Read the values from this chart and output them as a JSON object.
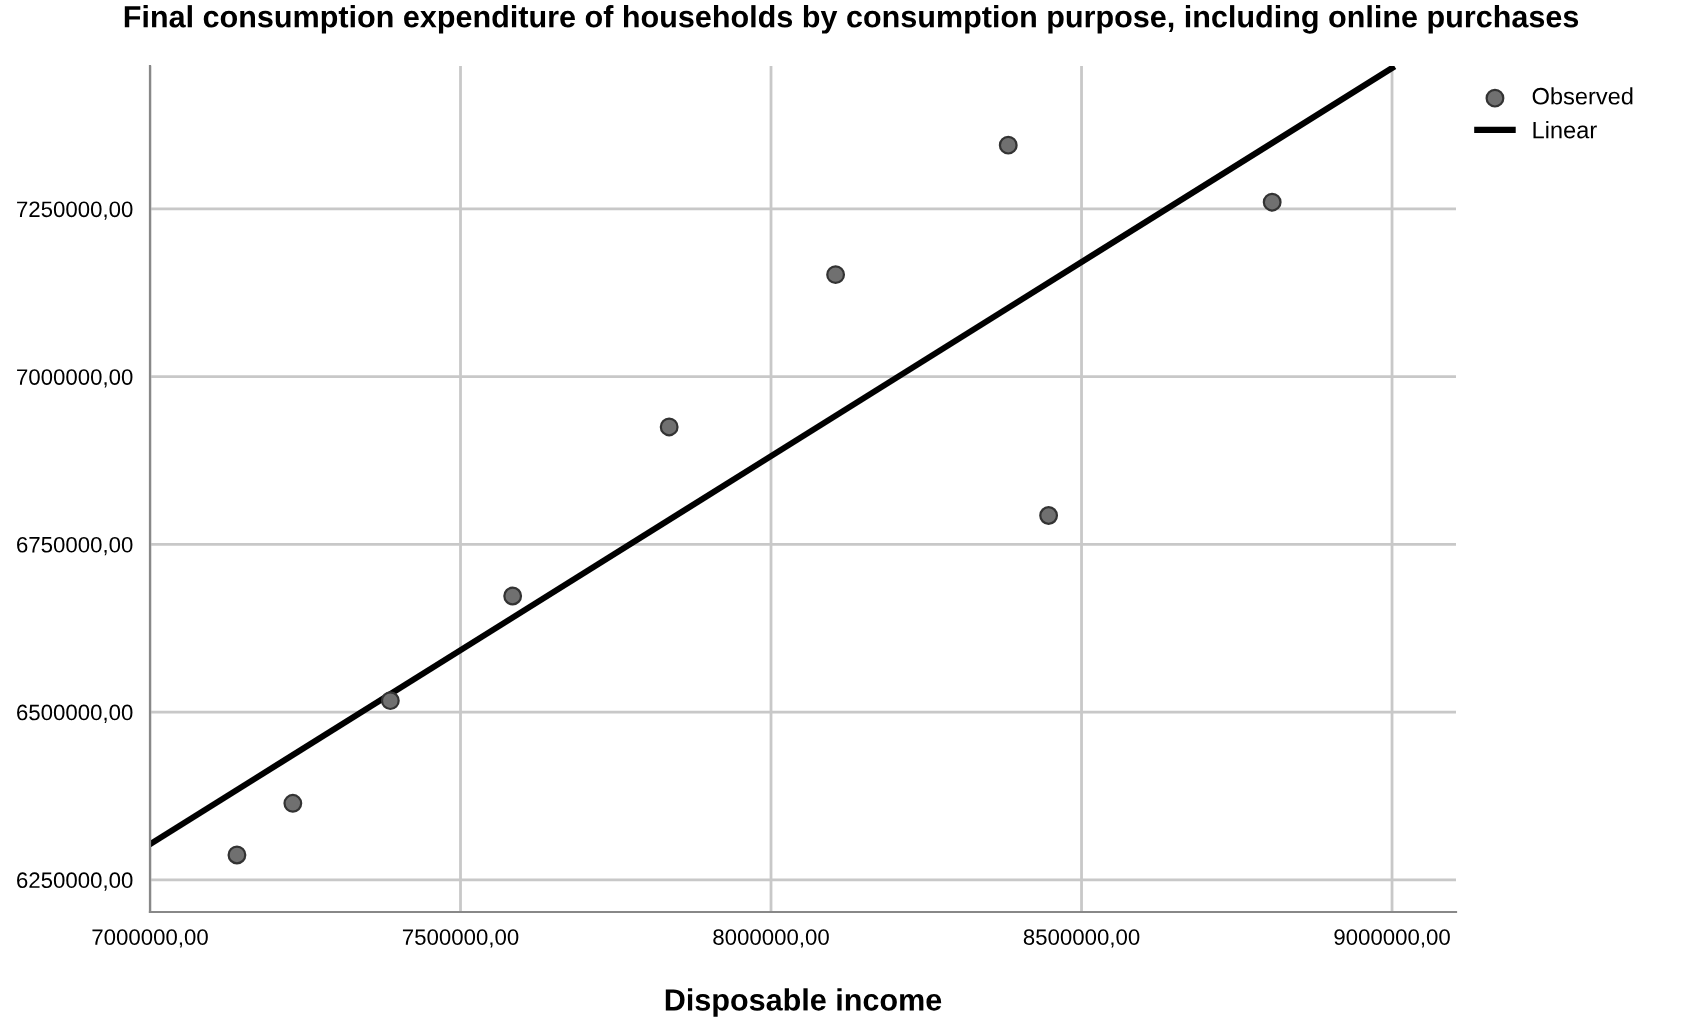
{
  "chart_data": {
    "type": "scatter",
    "title": "Final consumption expenditure of households by consumption purpose, including online purchases",
    "xlabel": "Disposable income",
    "series": [
      {
        "name": "Observed",
        "color": "#707070",
        "marker": "circle",
        "x": [
          7140000,
          7230000,
          7387000,
          7584000,
          7836000,
          8104000,
          8382000,
          8447000,
          8807000
        ],
        "values": [
          6287000,
          6364000,
          6517000,
          6673000,
          6925000,
          7152000,
          7345000,
          6793000,
          7260000
        ]
      },
      {
        "name": "Linear",
        "type": "line",
        "color": "#000000",
        "marker": "none",
        "line_style": "solid",
        "x": [
          7000000,
          9000000
        ],
        "values": [
          6303000,
          7460000
        ]
      }
    ],
    "xlim": [
      7000000,
      9103000
    ],
    "ylim": [
      6202000,
      7463000
    ],
    "xticks": [
      {
        "value": 7000000,
        "label": "7000000,00"
      },
      {
        "value": 7500000,
        "label": "7500000,00"
      },
      {
        "value": 8000000,
        "label": "8000000,00"
      },
      {
        "value": 8500000,
        "label": "8500000,00"
      },
      {
        "value": 9000000,
        "label": "9000000,00"
      }
    ],
    "yticks": [
      {
        "value": 6250000,
        "label": "6250000,00"
      },
      {
        "value": 6500000,
        "label": "6500000,00"
      },
      {
        "value": 6750000,
        "label": "6750000,00"
      },
      {
        "value": 7000000,
        "label": "7000000,00"
      },
      {
        "value": 7250000,
        "label": "7250000,00"
      }
    ],
    "grid": true,
    "legend": "top right"
  }
}
